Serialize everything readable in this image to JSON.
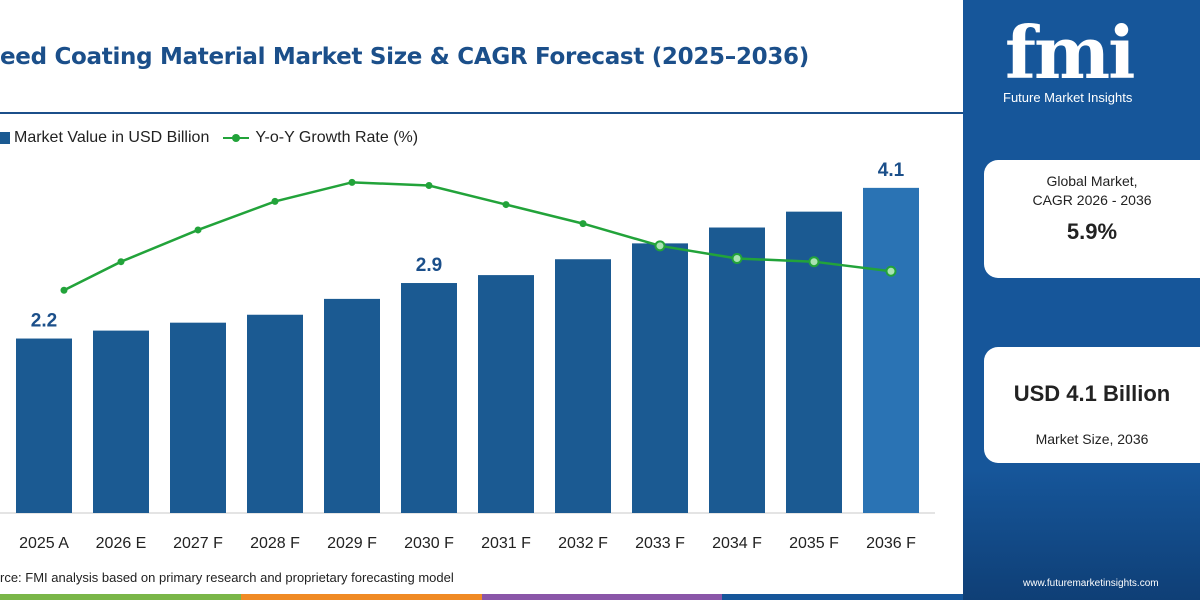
{
  "header": {
    "title": "eed Coating Material Market Size & CAGR Forecast (2025–2036)"
  },
  "legend": {
    "bar_label": "Market Value in USD Billion",
    "line_label": "Y-o-Y Growth Rate (%)"
  },
  "chart_data": {
    "type": "bar",
    "title": "eed Coating Material Market Size & CAGR Forecast (2025–2036)",
    "categories": [
      "2025 A",
      "2026 E",
      "2027 F",
      "2028 F",
      "2029 F",
      "2030 F",
      "2031 F",
      "2032 F",
      "2033 F",
      "2034 F",
      "2035 F",
      "2036 F"
    ],
    "series": [
      {
        "name": "Market Value in USD Billion",
        "type": "bar",
        "values": [
          2.2,
          2.3,
          2.4,
          2.5,
          2.7,
          2.9,
          3.0,
          3.2,
          3.4,
          3.6,
          3.8,
          4.1
        ],
        "data_labels": {
          "0": "2.2",
          "5": "2.9",
          "11": "4.1"
        }
      },
      {
        "name": "Y-o-Y Growth Rate (%)",
        "type": "line",
        "values": [
          4.0,
          4.9,
          5.9,
          6.8,
          7.4,
          7.3,
          6.7,
          6.1,
          5.4,
          5.0,
          4.9,
          4.6
        ]
      }
    ],
    "ylim": [
      0,
      4.3
    ],
    "growth_scale_note": "",
    "grid": false,
    "legend_position": "top-left"
  },
  "colors": {
    "bar": "#1b5a92",
    "bar_highlight": "#2a73b4",
    "line": "#22a33a",
    "panel": "#16569a",
    "title": "#1b4f8a"
  },
  "source": "rce: FMI analysis based on primary research and proprietary forecasting model",
  "sidebar": {
    "logo_text": "fmi",
    "logo_subtitle": "Future Market Insights",
    "cagr_label_line1": "Global Market,",
    "cagr_label_line2": "CAGR 2026 - 2036",
    "cagr_value": "5.9%",
    "size_value": "USD 4.1 Billion",
    "size_label": "Market Size, 2036",
    "url": "www.futuremarketinsights.com"
  },
  "bottom_band_colors": [
    "#7ab648",
    "#f08a24",
    "#8a56a8",
    "#16569a"
  ]
}
